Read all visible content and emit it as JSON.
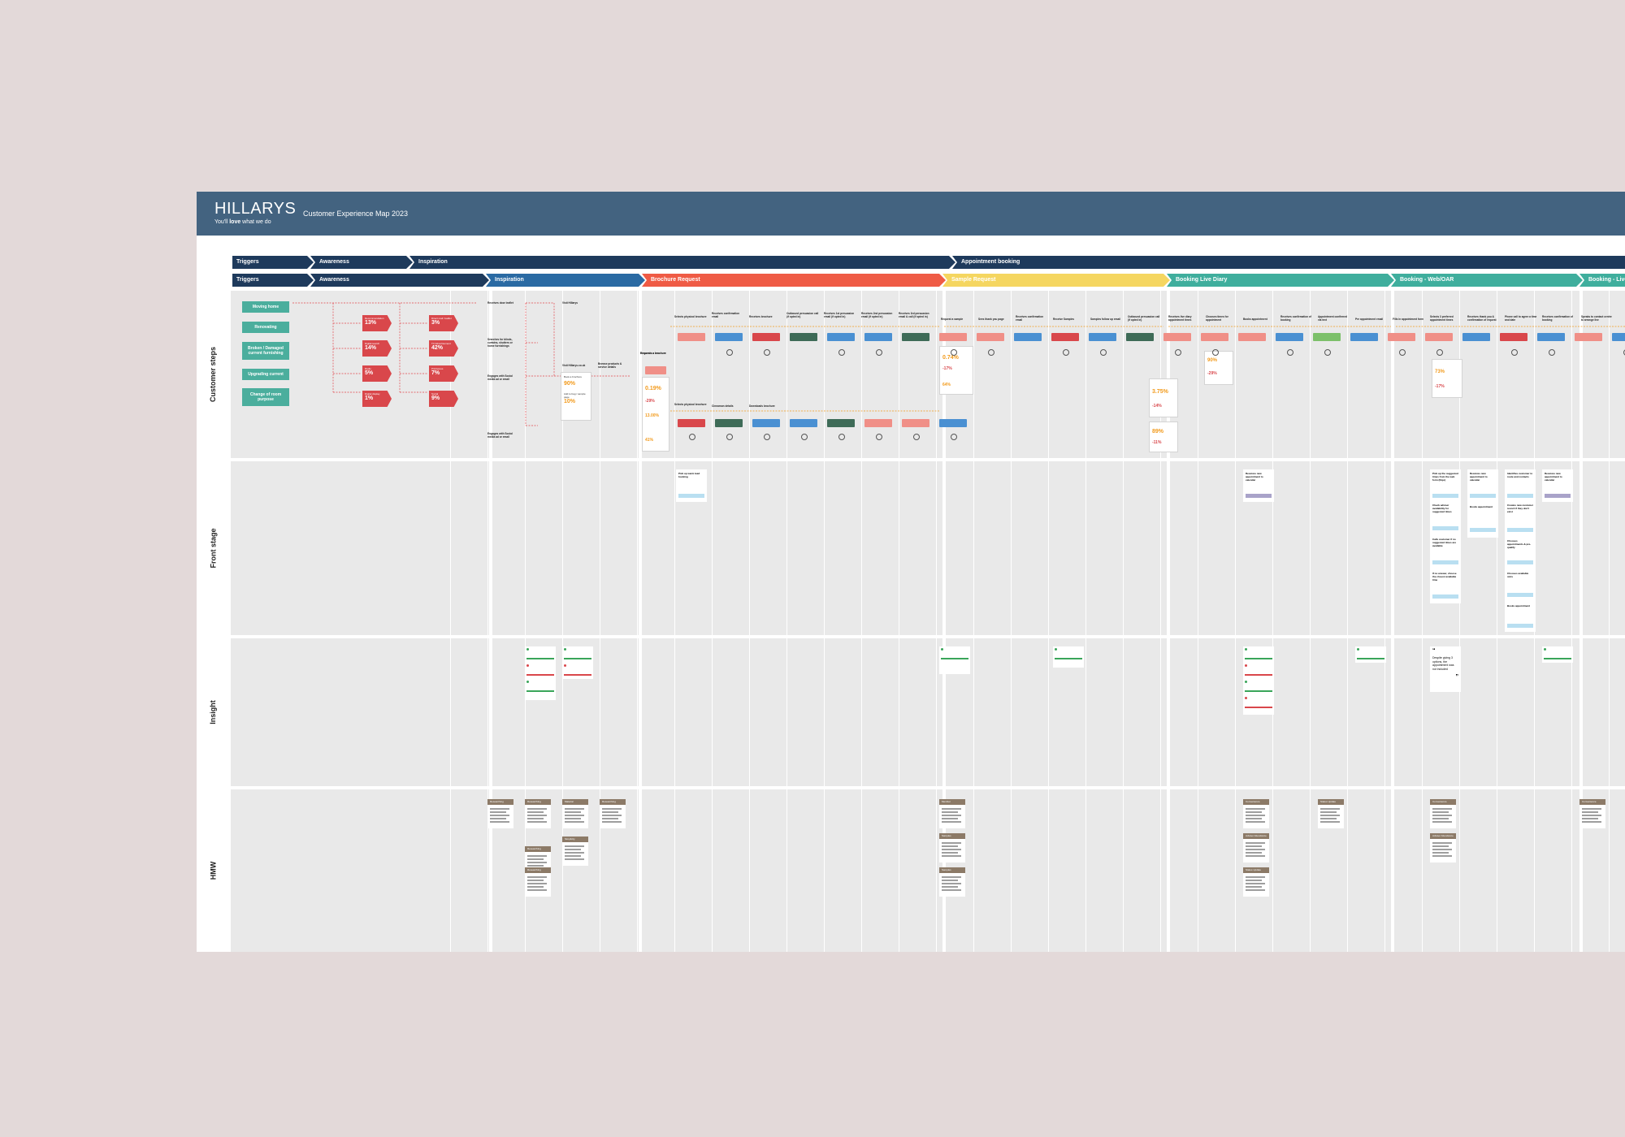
{
  "header": {
    "logo": "HILLARYS",
    "tagline_prefix": "You'll ",
    "tagline_bold": "love",
    "tagline_suffix": " what we do",
    "title": "Customer Experience Map 2023"
  },
  "phases_top": [
    {
      "label": "Triggers",
      "color": "#1e3a5c"
    },
    {
      "label": "Awareness",
      "color": "#1e3a5c"
    },
    {
      "label": "Inspiration",
      "color": "#1e3a5c"
    },
    {
      "label": "Appointment booking",
      "color": "#1e3a5c"
    }
  ],
  "phases_bottom": [
    {
      "label": "Triggers",
      "color": "#1e3a5c"
    },
    {
      "label": "Awareness",
      "color": "#1e3a5c"
    },
    {
      "label": "Inspiration",
      "color": "#2a6aa3"
    },
    {
      "label": "Brochure Request",
      "color": "#ef5b45"
    },
    {
      "label": "Sample Request",
      "color": "#f5d660"
    },
    {
      "label": "Booking Live Diary",
      "color": "#3fae9d"
    },
    {
      "label": "Booking - Web/OAR",
      "color": "#3fae9d"
    },
    {
      "label": "Booking - Live",
      "color": "#3fae9d"
    }
  ],
  "rows": [
    {
      "label": "Customer steps"
    },
    {
      "label": "Front stage"
    },
    {
      "label": "Insight"
    },
    {
      "label": "HMW"
    }
  ],
  "triggers": [
    {
      "label": "Moving home"
    },
    {
      "label": "Renovating"
    },
    {
      "label": "Broken / Damaged current furnishing"
    },
    {
      "label": "Upgrading current"
    },
    {
      "label": "Change of room purpose"
    }
  ],
  "awareness_tags": [
    {
      "title": "Recommendation",
      "pct": "13%"
    },
    {
      "title": "Digital search",
      "pct": "14%"
    },
    {
      "title": "Radio",
      "pct": "5%"
    },
    {
      "title": "Digital display",
      "pct": "1%"
    },
    {
      "title": "Direct mail / leaflet",
      "pct": "3%"
    },
    {
      "title": "TV Advertisement",
      "pct": "42%"
    },
    {
      "title": "Print/press",
      "pct": "7%"
    },
    {
      "title": "Social",
      "pct": "9%"
    }
  ],
  "inspiration_steps": [
    {
      "label": "Receives door leaflet"
    },
    {
      "label": "Searches for blinds, curtains, shutters or home furnishings"
    },
    {
      "label": "Engages with Social media ad or email"
    },
    {
      "label": "Engages with Social media ad or email"
    },
    {
      "label": "Visit Hillarys"
    },
    {
      "label": "Visit Hillarys.co.uk"
    },
    {
      "label": "Browse products & service details"
    },
    {
      "label": "Requests a brochure"
    }
  ],
  "inspiration_stats": [
    {
      "label": "Book a brochure",
      "pct": "90%"
    },
    {
      "label": "Add to bag / sample page",
      "pct": "10%"
    }
  ],
  "brochure_stats": [
    {
      "pct": "0.19%",
      "color": "#f29a1b"
    },
    {
      "pct": "-29%",
      "color": "#d9474b"
    },
    {
      "pct": "13.00%",
      "color": "#f29a1b"
    },
    {
      "pct": "41%",
      "color": "#f29a1b"
    }
  ],
  "sample_stats": [
    {
      "pct": "0.74%",
      "color": "#f29a1b"
    },
    {
      "pct": "-17%",
      "color": "#d9474b"
    },
    {
      "pct": "64%",
      "color": "#f29a1b"
    }
  ],
  "diary_stats": [
    {
      "pct": "3.75%",
      "color": "#f29a1b"
    },
    {
      "pct": "-14%",
      "color": "#d9474b"
    },
    {
      "pct": "89%",
      "color": "#f29a1b"
    },
    {
      "pct": "-11%",
      "color": "#d9474b"
    },
    {
      "pct": "90%",
      "color": "#f29a1b"
    },
    {
      "pct": "-29%",
      "color": "#d9474b"
    },
    {
      "pct": "73%",
      "color": "#f29a1b"
    },
    {
      "pct": "-17%",
      "color": "#d9474b"
    }
  ],
  "brochure_steps": [
    {
      "label": "Selects physical brochure"
    },
    {
      "label": "Receives confirmation email"
    },
    {
      "label": "Receives brochure"
    },
    {
      "label": "Outbound persuasion call (if opted in)"
    },
    {
      "label": "Receives 1st persuasion email (if opted in)"
    },
    {
      "label": "Receives 2nd persuasion email (if opted in)"
    },
    {
      "label": "Receives 3rd persuasion email & call (if opted in)"
    },
    {
      "label": "Selects physical brochure"
    },
    {
      "label": "Cinnamon details"
    },
    {
      "label": "Downloads brochure"
    }
  ],
  "sample_steps": [
    {
      "label": "Request a sample"
    },
    {
      "label": "Sees thank you page"
    },
    {
      "label": "Receives confirmation email"
    },
    {
      "label": "Receive Samples"
    },
    {
      "label": "Samples follow up email"
    },
    {
      "label": "Outbound persuasion call (if opted in)"
    }
  ],
  "booking_steps": [
    {
      "label": "Receives live diary appointment times"
    },
    {
      "label": "Chooses times for appointment"
    },
    {
      "label": "Books appointment"
    },
    {
      "label": "Receives confirmation of booking"
    },
    {
      "label": "Appointment confirmed via text"
    },
    {
      "label": "Pre appointment email"
    },
    {
      "label": "Fills in appointment form"
    },
    {
      "label": "Selects 3 preferred appointment times"
    },
    {
      "label": "Receives thank you & confirmation of request"
    },
    {
      "label": "Phone call to agree a time and date"
    },
    {
      "label": "Receives confirmation of booking"
    },
    {
      "label": "Speaks to contact centre to arrange live"
    }
  ],
  "front_stage": [
    {
      "label": "Pick up warm lead booking"
    },
    {
      "label": "Receives new appointment to calendar"
    },
    {
      "label": "Pick up the suggested times from the web form (Dojo)"
    },
    {
      "label": "Receives new appointment to calendar"
    },
    {
      "label": "Identifies customer to route and contacts"
    },
    {
      "label": "Receives new appointment to calendar"
    },
    {
      "label": "Check adviser availability for suggested times"
    },
    {
      "label": "Books appointment"
    },
    {
      "label": "Creates new customer record if they don't exist"
    },
    {
      "label": "Calls customer if no suggested times are available"
    },
    {
      "label": "Chooses appointments & pre-qualify"
    },
    {
      "label": "If no answer, choose the closest available time"
    },
    {
      "label": "Chooses available slots"
    },
    {
      "label": "Books appointment"
    }
  ],
  "insight_quote": "Despite giving 3 options, the appointment was not included",
  "hmw_tags": [
    {
      "label": "Researching"
    },
    {
      "label": "Researching"
    },
    {
      "label": "Material"
    },
    {
      "label": "Researching"
    },
    {
      "label": "Researching"
    },
    {
      "label": "Simplicity"
    },
    {
      "label": "Researching"
    },
    {
      "label": "Member"
    },
    {
      "label": "Samples"
    },
    {
      "label": "Samples"
    },
    {
      "label": "Convenience"
    },
    {
      "label": "Adviser Attendance"
    },
    {
      "label": "Status Update"
    },
    {
      "label": "Status Update"
    },
    {
      "label": "Convenience"
    },
    {
      "label": "Adviser Attendance"
    },
    {
      "label": "Convenience"
    }
  ],
  "colors": {
    "topbar": "#436380",
    "row_bg": "#e9e9e9",
    "trigger_teal": "#4bae9d",
    "tag_red": "#d9474b",
    "orange": "#f29a1b"
  }
}
